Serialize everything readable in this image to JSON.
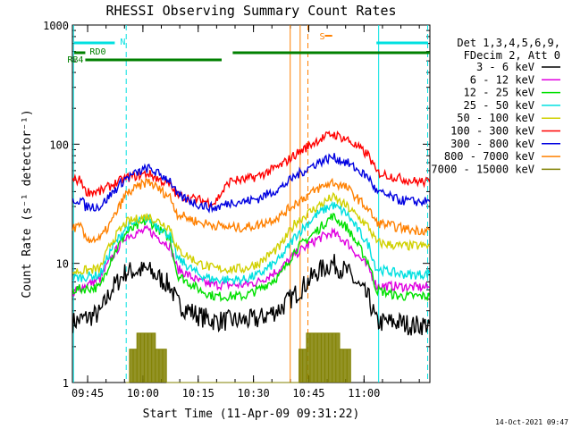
{
  "chart_data": {
    "type": "line",
    "title": "RHESSI Observing Summary Count Rates",
    "xlabel": "Start Time (11-Apr-09 09:31:22)",
    "ylabel": "Count Rate (s⁻¹ detector⁻¹)",
    "yscale": "log",
    "ylim": [
      1,
      1000
    ],
    "xlim_minutes": [
      9.5,
      106.5
    ],
    "x_ticks": [
      "09:45",
      "10:00",
      "10:15",
      "10:30",
      "10:45",
      "11:00"
    ],
    "y_ticks": [
      "1",
      "10",
      "100",
      "1000"
    ],
    "legend_header": [
      "Det 1,3,4,5,6,9,",
      "FDecim 2, Att 0"
    ],
    "series": [
      {
        "name": "3 - 6 keV",
        "color": "#000000",
        "x": [
          9.6,
          17,
          20,
          24,
          30,
          36,
          38,
          44,
          48,
          56,
          60,
          66,
          70,
          76,
          80,
          84,
          90,
          92,
          98,
          102,
          106.4
        ],
        "y": [
          3.2,
          3.8,
          6,
          8.5,
          8.8,
          6.5,
          4.6,
          3.6,
          3.3,
          3.3,
          3.4,
          4.2,
          5.5,
          8.5,
          10,
          8.5,
          5,
          3.2,
          3.2,
          3.0,
          3.1
        ]
      },
      {
        "name": "6 - 12 keV",
        "color": "#e000e0",
        "x": [
          9.6,
          10.5,
          17,
          20,
          24,
          30,
          36,
          38,
          44,
          48,
          56,
          60,
          66,
          70,
          76,
          80,
          84,
          90,
          92,
          98,
          102,
          106.4
        ],
        "y": [
          5.0,
          6.0,
          7.4,
          11,
          17,
          19,
          14,
          9,
          7,
          6.6,
          6.6,
          7,
          9,
          12,
          16,
          18,
          15,
          9,
          6.5,
          6.4,
          6.3,
          6.3
        ]
      },
      {
        "name": "12 - 25 keV",
        "color": "#00e000",
        "x": [
          9.6,
          17,
          20,
          24,
          30,
          36,
          38,
          44,
          48,
          56,
          60,
          66,
          70,
          76,
          80,
          84,
          90,
          92,
          98,
          102,
          106.4
        ],
        "y": [
          6.0,
          6.3,
          11,
          18,
          23,
          16,
          8,
          6,
          5.3,
          5.3,
          6,
          8,
          13,
          19,
          25,
          20,
          10,
          6,
          5.3,
          5.3,
          5.3
        ]
      },
      {
        "name": "25 - 50 keV",
        "color": "#00e0e0",
        "x": [
          9.6,
          17,
          20,
          24,
          30,
          36,
          38,
          44,
          48,
          56,
          60,
          66,
          70,
          76,
          80,
          84,
          90,
          92,
          98,
          102,
          106.4
        ],
        "y": [
          7.5,
          8.0,
          13,
          20,
          24,
          17,
          11,
          8,
          7.3,
          7.3,
          8,
          11,
          17,
          26,
          31,
          26,
          14,
          9,
          8.2,
          8,
          8.2
        ]
      },
      {
        "name": "50 - 100 keV",
        "color": "#d0d000",
        "x": [
          9.6,
          17,
          20,
          24,
          30,
          36,
          38,
          44,
          48,
          56,
          60,
          66,
          70,
          76,
          80,
          84,
          90,
          92,
          98,
          102,
          106.4
        ],
        "y": [
          8.5,
          9,
          15,
          22,
          25,
          20,
          13,
          10,
          9,
          9,
          10,
          14,
          22,
          30,
          36,
          30,
          20,
          15,
          14,
          14,
          14
        ]
      },
      {
        "name": "100 - 300 keV",
        "color": "#ff0000",
        "x": [
          9.6,
          12,
          13,
          17,
          20,
          24,
          30,
          36,
          38,
          44,
          48,
          52,
          53,
          56,
          60,
          66,
          70,
          76,
          80,
          84,
          90,
          92,
          98,
          102,
          106.4
        ],
        "y": [
          50,
          50,
          40,
          40,
          45,
          52,
          57,
          45,
          37,
          34,
          32,
          48,
          50,
          50,
          54,
          66,
          82,
          108,
          122,
          110,
          80,
          58,
          52,
          49,
          48
        ]
      },
      {
        "name": "300 - 800 keV",
        "color": "#0000e0",
        "x": [
          9.6,
          12,
          13,
          17,
          20,
          24,
          30,
          36,
          38,
          44,
          48,
          52,
          53,
          56,
          60,
          66,
          70,
          76,
          80,
          84,
          90,
          92,
          98,
          102,
          106.4
        ],
        "y": [
          34,
          34,
          30,
          30,
          38,
          52,
          63,
          50,
          37,
          31,
          29,
          32,
          33,
          33,
          35,
          43,
          54,
          70,
          78,
          70,
          52,
          40,
          34,
          33,
          33
        ]
      },
      {
        "name": "800 - 7000 keV",
        "color": "#ff8000",
        "x": [
          9.6,
          12,
          13,
          17,
          20,
          24,
          30,
          36,
          38,
          44,
          48,
          52,
          53,
          56,
          60,
          66,
          70,
          76,
          80,
          84,
          90,
          92,
          98,
          102,
          106.4
        ],
        "y": [
          20,
          20,
          16,
          16,
          22,
          38,
          49,
          36,
          26,
          22,
          21,
          20,
          20,
          20,
          21,
          25,
          32,
          42,
          48,
          43,
          28,
          22,
          20,
          19,
          19
        ]
      },
      {
        "name": "7000 - 15000 keV",
        "color": "#808000",
        "x": [
          24,
          25,
          26,
          27,
          28,
          29,
          30,
          31,
          32,
          33,
          34,
          35,
          70,
          71,
          72,
          73,
          74,
          75,
          76,
          77,
          78,
          79,
          80,
          81,
          82,
          83,
          84,
          85
        ],
        "y": [
          1,
          1.9,
          1.9,
          2.6,
          2.6,
          2.6,
          2.6,
          2.6,
          1.9,
          1.9,
          1.9,
          1,
          1,
          1.9,
          1.9,
          2.6,
          2.6,
          2.6,
          2.6,
          2.6,
          2.6,
          2.6,
          2.6,
          2.6,
          1.9,
          1.9,
          1.9,
          1
        ]
      }
    ],
    "annotations": {
      "labels": [
        "N",
        "RD0",
        "RB4",
        "S"
      ],
      "N_bars": [
        [
          10,
          21
        ],
        [
          92,
          106
        ]
      ],
      "RD0_bar": [
        10,
        13
      ],
      "RB4_bar": [
        13,
        50
      ],
      "gap_bar": [
        53,
        106.5
      ],
      "S_marker": [
        78,
        80
      ]
    },
    "vlines": {
      "cyan_solid": [
        9.8,
        92.6
      ],
      "cyan_dashed": [
        24.1,
        105.9
      ],
      "orange_solid": [
        68.6,
        71.3
      ],
      "orange_dashed": [
        73.4
      ]
    },
    "timestamp": "14-Oct-2021 09:47"
  }
}
